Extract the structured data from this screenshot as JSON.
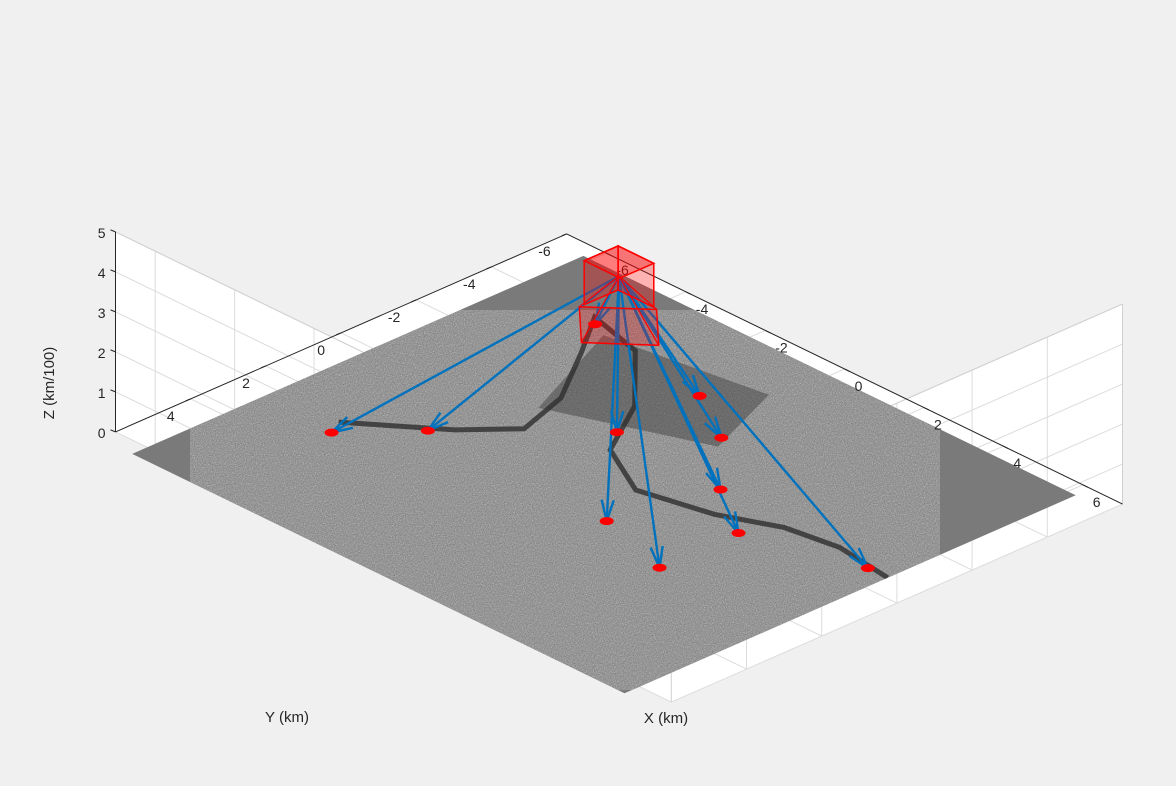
{
  "chart_data": {
    "type": "scatter3d",
    "title": "",
    "xlabel": "X (km)",
    "ylabel": "Y (km)",
    "zlabel": "Z (km/100)",
    "xlim": [
      -7,
      7
    ],
    "ylim": [
      -6,
      6
    ],
    "zlim": [
      0,
      5
    ],
    "x_ticks": [
      -6,
      -4,
      -2,
      0,
      2,
      4,
      6
    ],
    "y_ticks": [
      -6,
      -4,
      -2,
      0,
      2,
      4
    ],
    "z_ticks": [
      0,
      1,
      2,
      3,
      4,
      5
    ],
    "grid": true,
    "surface": "grayscale satellite image draped on the ground plane z = 0",
    "emitter": {
      "shape": "box",
      "color": "#ff0000",
      "center": [
        0,
        0,
        4.6
      ],
      "ray_origin": [
        0,
        0,
        4.8
      ]
    },
    "arrow_color": "#0072bd",
    "target_color": "#ff0000",
    "targets": [
      {
        "x": -4.4,
        "y": 3.0,
        "z": 0
      },
      {
        "x": -3.3,
        "y": 1.6,
        "z": 0
      },
      {
        "x": 1.3,
        "y": 1.7,
        "z": 0
      },
      {
        "x": 3.2,
        "y": 2.3,
        "z": 0
      },
      {
        "x": 3.2,
        "y": 0.2,
        "z": 0
      },
      {
        "x": 5.7,
        "y": -0.6,
        "z": 0
      },
      {
        "x": 1.8,
        "y": -0.8,
        "z": 0
      },
      {
        "x": -1.0,
        "y": -1.0,
        "z": 0
      },
      {
        "x": -4.2,
        "y": -3.8,
        "z": 0
      },
      {
        "x": 0.4,
        "y": -2.3,
        "z": 0
      },
      {
        "x": -1.0,
        "y": -3.2,
        "z": 0
      }
    ]
  }
}
